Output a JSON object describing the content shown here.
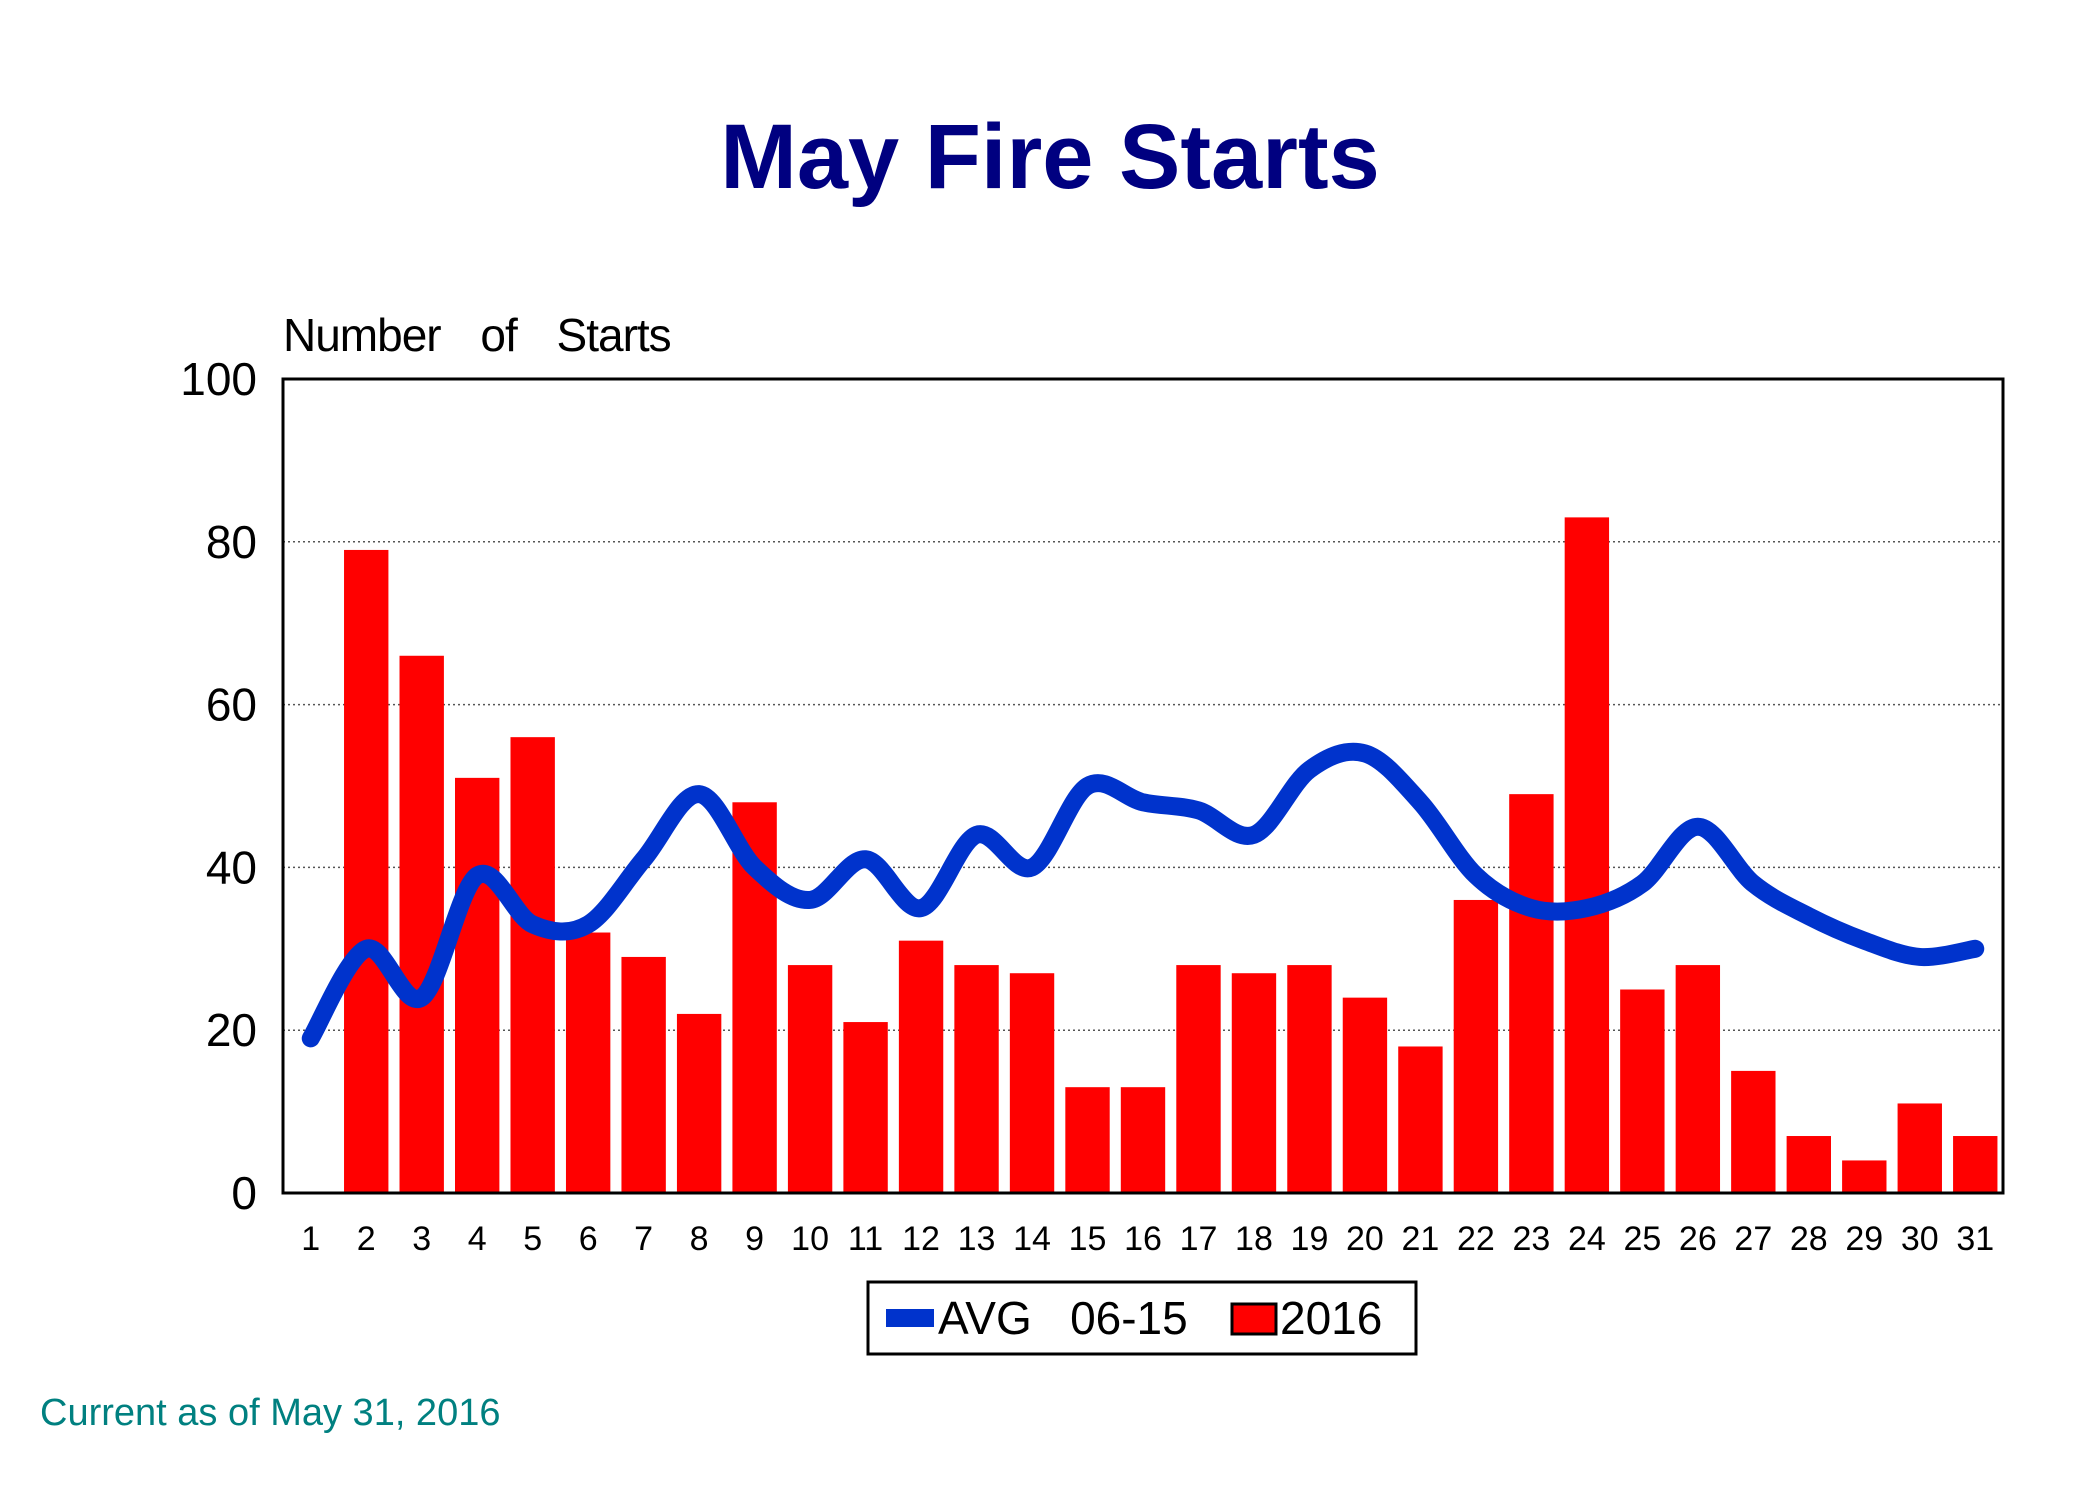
{
  "chart_data": {
    "type": "bar",
    "title": "May Fire Starts",
    "ylabel": "Number of Starts",
    "xlabel": "",
    "ylim": [
      0,
      100
    ],
    "yticks": [
      0,
      20,
      40,
      60,
      80,
      100
    ],
    "grid": "horizontal dotted",
    "legend_position": "bottom-center",
    "categories": [
      "1",
      "2",
      "3",
      "4",
      "5",
      "6",
      "7",
      "8",
      "9",
      "10",
      "11",
      "12",
      "13",
      "14",
      "15",
      "16",
      "17",
      "18",
      "19",
      "20",
      "21",
      "22",
      "23",
      "24",
      "25",
      "26",
      "27",
      "28",
      "29",
      "30",
      "31"
    ],
    "series": [
      {
        "name": "AVG 06-15",
        "kind": "line",
        "color": "#0033cc",
        "values": [
          19,
          30,
          24,
          39,
          33,
          33,
          41,
          49,
          40,
          36,
          41,
          35,
          44,
          40,
          50,
          48,
          47,
          44,
          52,
          54,
          48,
          39,
          35,
          35,
          38,
          45,
          38,
          34,
          31,
          29,
          30
        ]
      },
      {
        "name": "2016",
        "kind": "bar",
        "color": "#ff0000",
        "values": [
          0,
          79,
          66,
          51,
          56,
          32,
          29,
          22,
          48,
          28,
          21,
          31,
          28,
          27,
          13,
          13,
          28,
          27,
          28,
          24,
          18,
          36,
          49,
          83,
          25,
          28,
          15,
          7,
          4,
          11,
          7
        ]
      }
    ]
  },
  "legend": {
    "line_label": "AVG   06-15",
    "bar_label": "2016"
  },
  "footer": "Current as of May 31, 2016"
}
